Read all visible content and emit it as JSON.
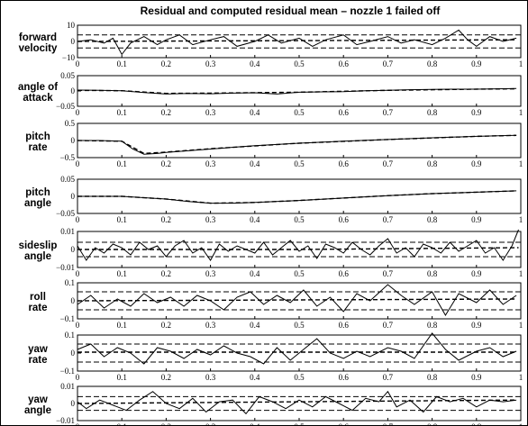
{
  "chart_data": {
    "type": "line",
    "title": "Residual and computed residual mean – nozzle 1 failed off",
    "x_ticks": [
      "0",
      "0.1",
      "0.2",
      "0.3",
      "0.4",
      "0.5",
      "0.6",
      "0.7",
      "0.8",
      "0.9",
      "1"
    ],
    "xlim": [
      0,
      1
    ],
    "grid": false,
    "legend": "none",
    "panels": [
      {
        "label": [
          "forward",
          "velocity"
        ],
        "ylim": [
          -10,
          10
        ],
        "y_ticks": [
          "10",
          "0",
          "−10"
        ],
        "bands": [
          4,
          -4
        ],
        "residual": {
          "x": [
            0,
            0.03,
            0.06,
            0.08,
            0.1,
            0.12,
            0.15,
            0.18,
            0.2,
            0.23,
            0.26,
            0.3,
            0.33,
            0.36,
            0.4,
            0.43,
            0.46,
            0.5,
            0.53,
            0.56,
            0.6,
            0.63,
            0.66,
            0.7,
            0.73,
            0.76,
            0.8,
            0.83,
            0.86,
            0.88,
            0.9,
            0.93,
            0.96,
            0.99
          ],
          "y": [
            0,
            1,
            -1,
            2,
            -8,
            -1,
            3,
            -2,
            1,
            4,
            -2,
            1,
            3,
            -3,
            0,
            4,
            -1,
            2,
            -3,
            1,
            4,
            -2,
            0,
            3,
            -1,
            1,
            -2,
            2,
            7,
            1,
            -3,
            3,
            0,
            2
          ]
        },
        "mean": {
          "x": [
            0,
            0.5,
            0.99
          ],
          "y": [
            0,
            0.5,
            1
          ]
        }
      },
      {
        "label": [
          "angle of",
          "attack"
        ],
        "ylim": [
          -0.05,
          0.05
        ],
        "y_ticks": [
          "0.05",
          "0",
          "−0.05"
        ],
        "bands": [],
        "residual": {
          "x": [
            0,
            0.05,
            0.1,
            0.15,
            0.2,
            0.25,
            0.3,
            0.35,
            0.4,
            0.45,
            0.5,
            0.55,
            0.6,
            0.65,
            0.7,
            0.75,
            0.8,
            0.85,
            0.9,
            0.95,
            0.99
          ],
          "y": [
            0.003,
            0.002,
            0.001,
            -0.005,
            -0.01,
            -0.008,
            -0.009,
            -0.007,
            -0.006,
            -0.01,
            -0.004,
            -0.003,
            -0.002,
            0.001,
            0.002,
            0.004,
            0.005,
            0.006,
            0.006,
            0.007,
            0.008
          ]
        },
        "mean": {
          "x": [
            0,
            0.1,
            0.2,
            0.3,
            0.5,
            0.7,
            0.9,
            0.99
          ],
          "y": [
            0.002,
            0.001,
            -0.008,
            -0.007,
            -0.004,
            0.002,
            0.006,
            0.007
          ]
        }
      },
      {
        "label": [
          "pitch",
          "rate"
        ],
        "ylim": [
          -0.5,
          0.5
        ],
        "y_ticks": [
          "0.5",
          "0",
          "−0.5"
        ],
        "bands": [],
        "residual": {
          "x": [
            0,
            0.05,
            0.1,
            0.125,
            0.15,
            0.18,
            0.2,
            0.25,
            0.3,
            0.4,
            0.5,
            0.6,
            0.7,
            0.8,
            0.9,
            0.99
          ],
          "y": [
            0,
            0,
            -0.02,
            -0.25,
            -0.4,
            -0.38,
            -0.35,
            -0.3,
            -0.25,
            -0.15,
            -0.08,
            -0.02,
            0.03,
            0.08,
            0.12,
            0.15
          ]
        },
        "mean": {
          "x": [
            0,
            0.1,
            0.15,
            0.2,
            0.3,
            0.5,
            0.7,
            0.9,
            0.99
          ],
          "y": [
            0,
            -0.02,
            -0.38,
            -0.34,
            -0.24,
            -0.08,
            0.03,
            0.12,
            0.15
          ]
        }
      },
      {
        "label": [
          "pitch",
          "angle"
        ],
        "ylim": [
          -0.05,
          0.05
        ],
        "y_ticks": [
          "0.05",
          "0",
          "−0.05"
        ],
        "bands": [],
        "residual": {
          "x": [
            0,
            0.1,
            0.2,
            0.25,
            0.3,
            0.35,
            0.4,
            0.5,
            0.6,
            0.7,
            0.8,
            0.9,
            0.99
          ],
          "y": [
            0,
            0,
            -0.008,
            -0.015,
            -0.02,
            -0.02,
            -0.018,
            -0.012,
            -0.005,
            0.002,
            0.008,
            0.012,
            0.016
          ]
        },
        "mean": {
          "x": [
            0,
            0.1,
            0.2,
            0.3,
            0.4,
            0.5,
            0.6,
            0.7,
            0.8,
            0.9,
            0.99
          ],
          "y": [
            0,
            0,
            -0.008,
            -0.02,
            -0.018,
            -0.012,
            -0.005,
            0.002,
            0.008,
            0.012,
            0.016
          ]
        }
      },
      {
        "label": [
          "sideslip",
          "angle"
        ],
        "ylim": [
          -0.01,
          0.01
        ],
        "y_ticks": [
          "0.01",
          "0",
          "−0.01"
        ],
        "bands": [
          0.004,
          -0.004
        ],
        "residual": {
          "x": [
            0,
            0.02,
            0.04,
            0.06,
            0.08,
            0.1,
            0.12,
            0.14,
            0.16,
            0.18,
            0.2,
            0.22,
            0.24,
            0.26,
            0.28,
            0.3,
            0.32,
            0.34,
            0.36,
            0.38,
            0.4,
            0.42,
            0.44,
            0.46,
            0.48,
            0.5,
            0.52,
            0.54,
            0.56,
            0.58,
            0.6,
            0.62,
            0.64,
            0.66,
            0.68,
            0.7,
            0.72,
            0.74,
            0.76,
            0.78,
            0.8,
            0.82,
            0.84,
            0.86,
            0.88,
            0.9,
            0.92,
            0.94,
            0.96,
            0.98,
            0.995
          ],
          "y": [
            0.002,
            -0.006,
            0.001,
            -0.002,
            0.003,
            0.001,
            -0.003,
            0.004,
            0,
            0.002,
            -0.004,
            0.002,
            0.005,
            -0.002,
            0.001,
            -0.006,
            0.003,
            -0.001,
            0.002,
            0,
            -0.002,
            0.004,
            -0.003,
            0.001,
            0.005,
            -0.001,
            0.002,
            -0.005,
            0.003,
            0.001,
            -0.002,
            0.004,
            0,
            -0.003,
            0.002,
            0.006,
            -0.002,
            0.001,
            -0.004,
            0.003,
            0.001,
            -0.002,
            0.004,
            -0.001,
            0.002,
            0.005,
            -0.002,
            0.001,
            -0.006,
            0.002,
            0.011
          ]
        },
        "mean": {
          "x": [
            0,
            0.5,
            0.995
          ],
          "y": [
            0,
            0,
            0.001
          ]
        }
      },
      {
        "label": [
          "roll",
          "rate"
        ],
        "ylim": [
          -0.1,
          0.1
        ],
        "y_ticks": [
          "0.1",
          "0",
          "−0.1"
        ],
        "bands": [
          0.05,
          -0.05
        ],
        "residual": {
          "x": [
            0,
            0.03,
            0.06,
            0.09,
            0.12,
            0.15,
            0.18,
            0.21,
            0.24,
            0.27,
            0.3,
            0.33,
            0.36,
            0.39,
            0.42,
            0.45,
            0.48,
            0.51,
            0.54,
            0.57,
            0.6,
            0.63,
            0.66,
            0.7,
            0.73,
            0.76,
            0.8,
            0.83,
            0.86,
            0.9,
            0.93,
            0.96,
            0.99
          ],
          "y": [
            -0.02,
            0.03,
            -0.04,
            0.01,
            -0.03,
            0.04,
            -0.01,
            0.02,
            -0.03,
            0.03,
            0,
            -0.05,
            0.02,
            0.05,
            -0.02,
            0.03,
            -0.01,
            0.06,
            -0.03,
            0.02,
            -0.06,
            0.04,
            0,
            0.09,
            0.03,
            -0.02,
            0.05,
            -0.08,
            0.04,
            -0.01,
            0.06,
            -0.02,
            0.03
          ]
        },
        "mean": {
          "x": [
            0,
            0.5,
            0.99
          ],
          "y": [
            0,
            0.005,
            0.01
          ]
        }
      },
      {
        "label": [
          "yaw",
          "rate"
        ],
        "ylim": [
          -0.1,
          0.1
        ],
        "y_ticks": [
          "0.1",
          "0",
          "−0.1"
        ],
        "bands": [
          0.05,
          -0.05
        ],
        "residual": {
          "x": [
            0,
            0.03,
            0.06,
            0.09,
            0.12,
            0.15,
            0.18,
            0.21,
            0.24,
            0.27,
            0.3,
            0.33,
            0.36,
            0.39,
            0.42,
            0.45,
            0.48,
            0.51,
            0.54,
            0.57,
            0.6,
            0.63,
            0.66,
            0.7,
            0.73,
            0.76,
            0.8,
            0.83,
            0.86,
            0.9,
            0.93,
            0.96,
            0.99
          ],
          "y": [
            0.02,
            0.05,
            -0.02,
            0.03,
            0,
            -0.06,
            0.03,
            0.01,
            -0.03,
            0.02,
            -0.01,
            0.04,
            0,
            -0.02,
            -0.06,
            0.03,
            -0.04,
            0.02,
            0.08,
            0,
            -0.03,
            0.01,
            -0.02,
            0.03,
            0.01,
            -0.03,
            0.11,
            0.02,
            -0.04,
            0.01,
            0.03,
            -0.02,
            0.01
          ]
        },
        "mean": {
          "x": [
            0,
            0.5,
            0.99
          ],
          "y": [
            0.005,
            0.005,
            0.005
          ]
        }
      },
      {
        "label": [
          "yaw",
          "angle"
        ],
        "ylim": [
          -0.01,
          0.01
        ],
        "y_ticks": [
          "0.01",
          "0",
          "−0.01"
        ],
        "bands": [
          0.004,
          -0.004
        ],
        "residual": {
          "x": [
            0,
            0.02,
            0.05,
            0.08,
            0.11,
            0.14,
            0.17,
            0.2,
            0.23,
            0.26,
            0.29,
            0.32,
            0.35,
            0.38,
            0.41,
            0.44,
            0.47,
            0.5,
            0.53,
            0.56,
            0.59,
            0.62,
            0.65,
            0.68,
            0.7,
            0.72,
            0.75,
            0.78,
            0.81,
            0.84,
            0.87,
            0.9,
            0.93,
            0.96,
            0.99
          ],
          "y": [
            0.001,
            -0.003,
            0.002,
            -0.001,
            -0.004,
            0.002,
            0.007,
            0,
            -0.003,
            0.003,
            -0.005,
            0.001,
            0.002,
            -0.006,
            0.004,
            0.001,
            -0.003,
            0.002,
            -0.002,
            0.004,
            0,
            -0.004,
            0.003,
            0.001,
            0.007,
            -0.002,
            0.002,
            -0.005,
            0.004,
            0.001,
            0.003,
            -0.002,
            0.002,
            0.001,
            0.002
          ]
        },
        "mean": {
          "x": [
            0,
            0.5,
            0.99
          ],
          "y": [
            0,
            0.001,
            0.002
          ]
        }
      }
    ]
  }
}
